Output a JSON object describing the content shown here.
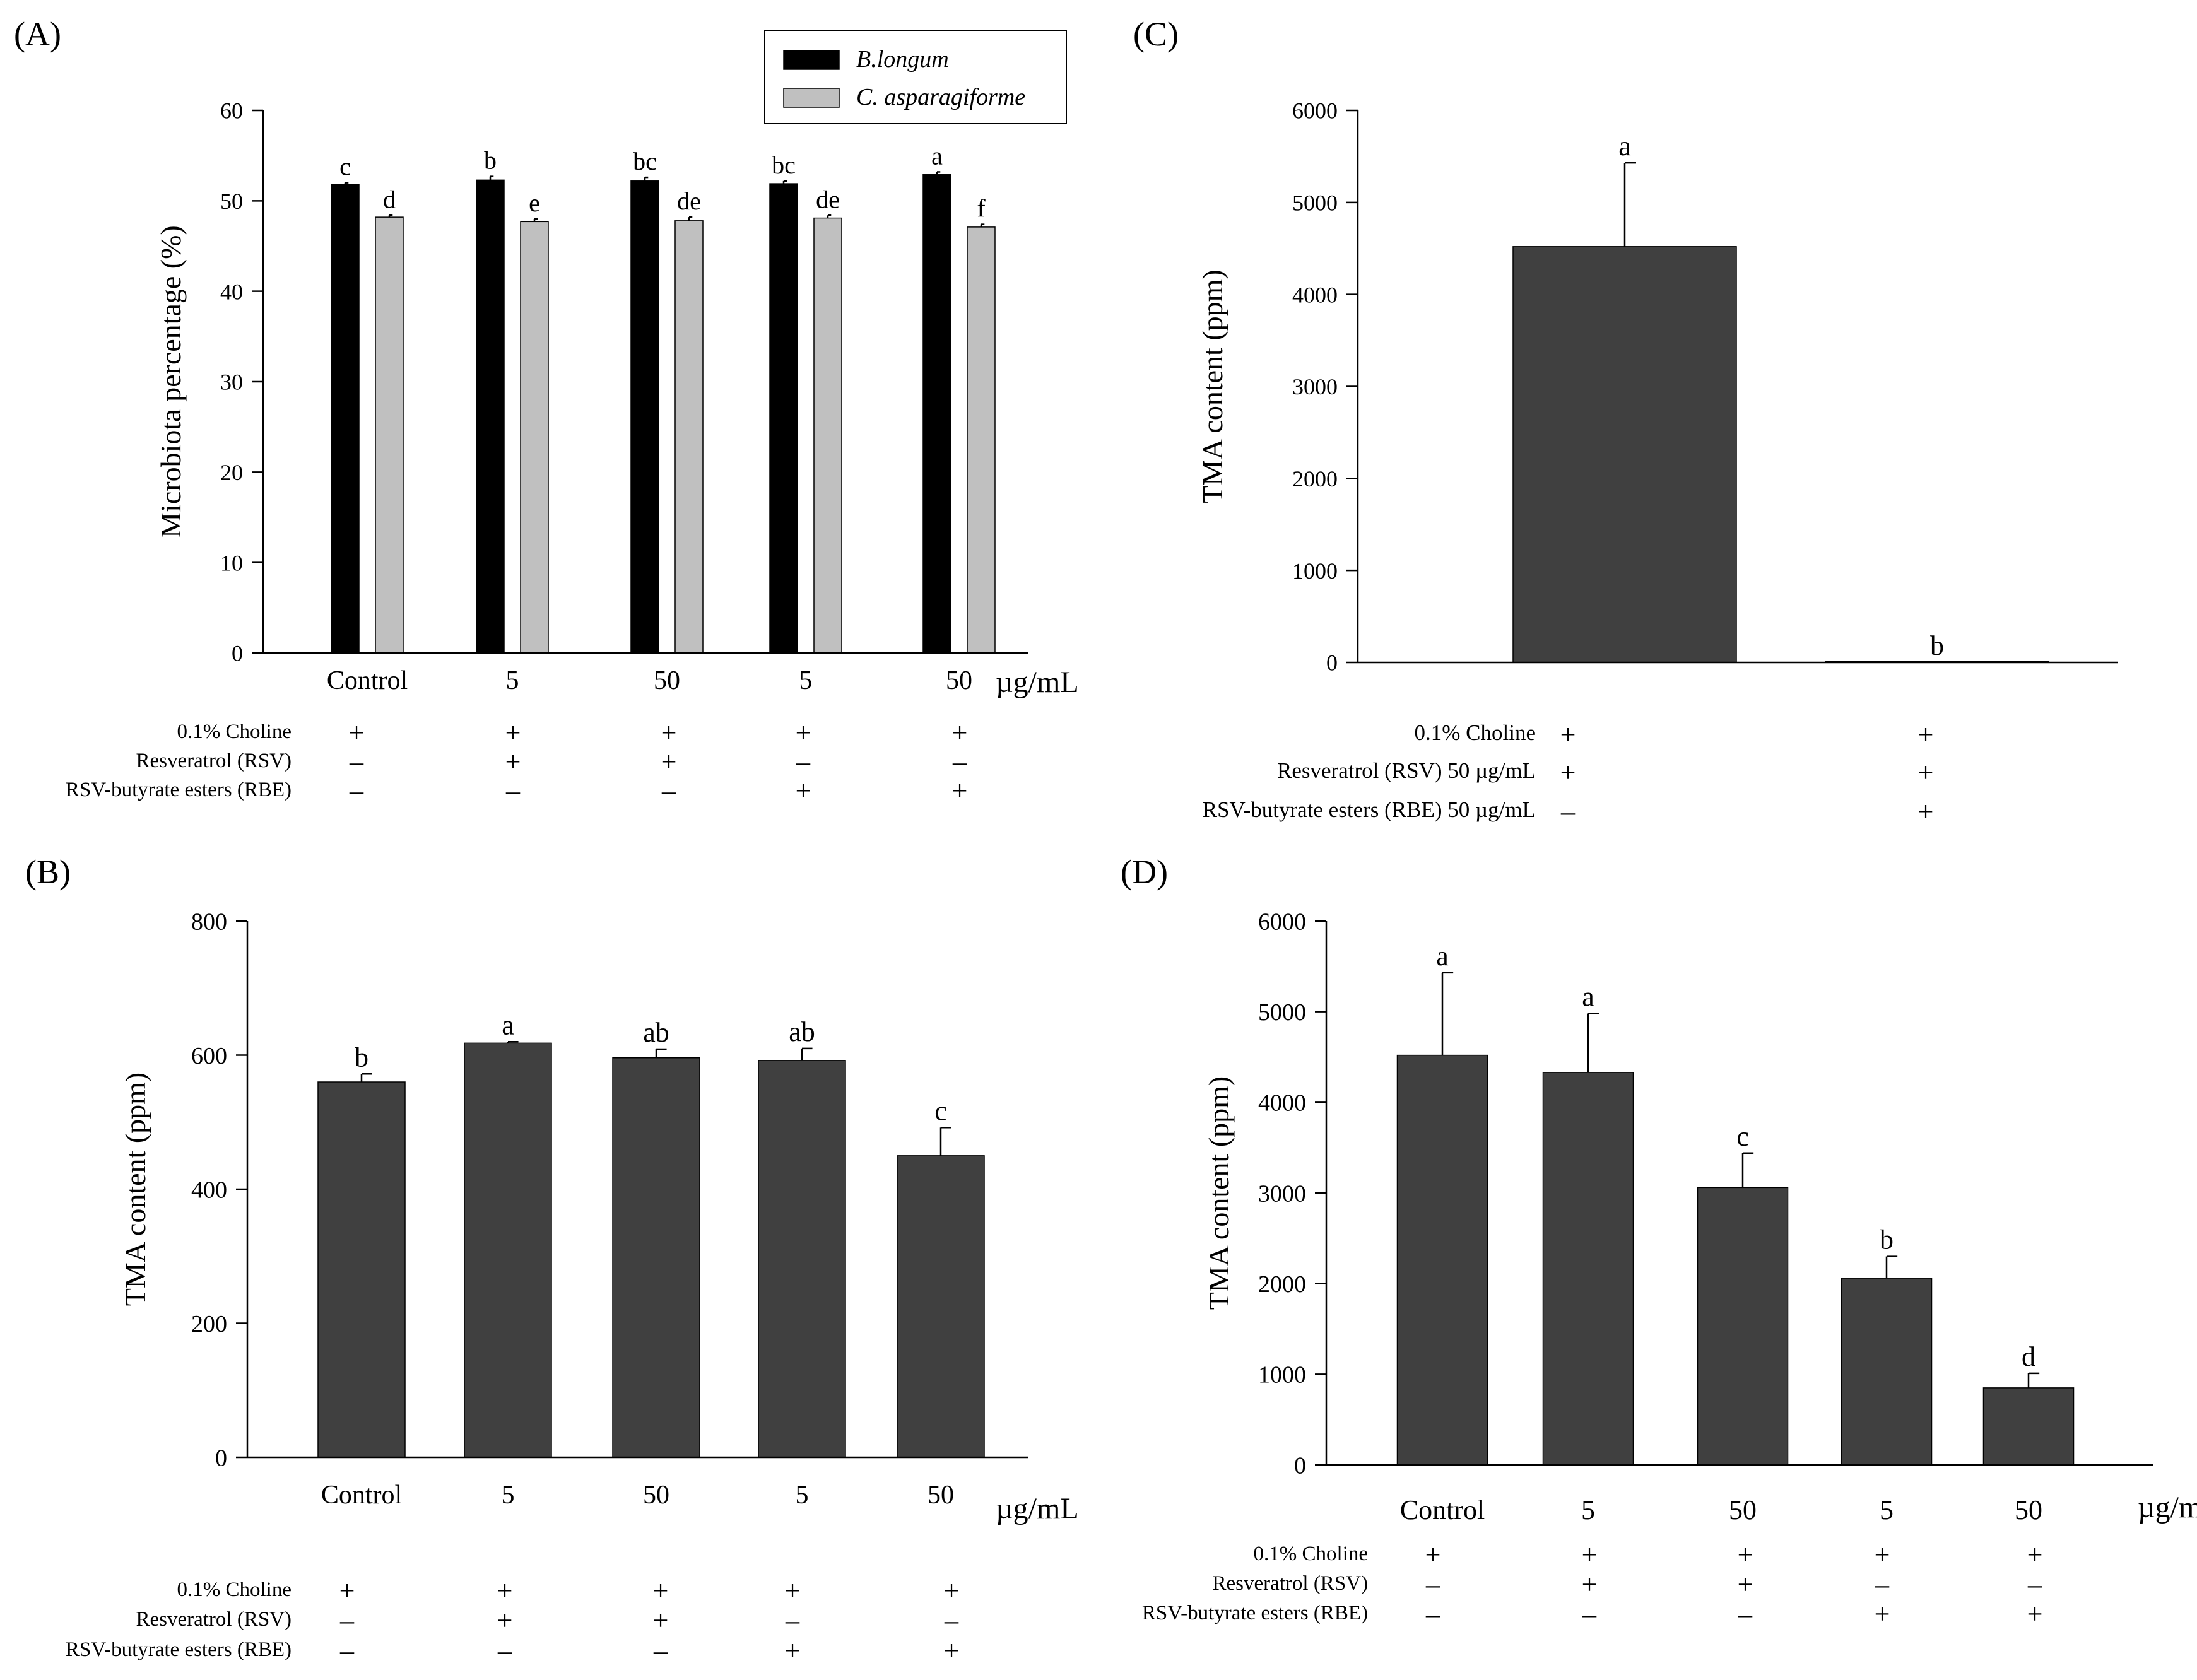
{
  "colors": {
    "black_bar": "#000000",
    "gray_bar": "#c0c0c0",
    "dark_bar": "#404040",
    "axis": "#000000"
  },
  "chart_data": [
    {
      "id": "A",
      "panel_label": "(A)",
      "type": "bar",
      "ylabel": "Microbiota percentage (%)",
      "xlabel": "",
      "ylim": [
        0,
        60
      ],
      "yticks": [
        0,
        10,
        20,
        30,
        40,
        50,
        60
      ],
      "categories": [
        "Control",
        "5",
        "50",
        "5",
        "50"
      ],
      "unit_label": "µg/mL",
      "legend": [
        "B.longum",
        "C. asparagiforme"
      ],
      "legend_position": "top",
      "series": [
        {
          "name": "B.longum",
          "color": "#000000",
          "values": [
            51.8,
            52.3,
            52.2,
            51.9,
            52.9
          ],
          "errors": [
            0.2,
            0.4,
            0.4,
            0.3,
            0.3
          ],
          "letters": [
            "c",
            "b",
            "bc",
            "bc",
            "a"
          ]
        },
        {
          "name": "C. asparagiforme",
          "color": "#c0c0c0",
          "values": [
            48.2,
            47.7,
            47.8,
            48.1,
            47.1
          ],
          "errors": [
            0.2,
            0.3,
            0.4,
            0.3,
            0.3
          ],
          "letters": [
            "d",
            "e",
            "de",
            "de",
            "f"
          ]
        }
      ],
      "treatment_rows": [
        {
          "label": "0.1% Choline",
          "signs": [
            "+",
            "+",
            "+",
            "+",
            "+"
          ]
        },
        {
          "label": "Resveratrol (RSV)",
          "signs": [
            "–",
            "+",
            "+",
            "–",
            "–"
          ]
        },
        {
          "label": "RSV-butyrate esters (RBE)",
          "signs": [
            "–",
            "–",
            "–",
            "+",
            "+"
          ]
        }
      ]
    },
    {
      "id": "B",
      "panel_label": "(B)",
      "type": "bar",
      "ylabel": "TMA content (ppm)",
      "xlabel": "",
      "ylim": [
        0,
        800
      ],
      "yticks": [
        0,
        200,
        400,
        600,
        800
      ],
      "categories": [
        "Control",
        "5",
        "50",
        "5",
        "50"
      ],
      "unit_label": "µg/mL",
      "series": [
        {
          "name": "TMA",
          "color": "#404040",
          "values": [
            560,
            618,
            596,
            592,
            450
          ],
          "errors": [
            12,
            2,
            13,
            18,
            42
          ],
          "letters": [
            "b",
            "a",
            "ab",
            "ab",
            "c"
          ]
        }
      ],
      "treatment_rows": [
        {
          "label": "0.1% Choline",
          "signs": [
            "+",
            "+",
            "+",
            "+",
            "+"
          ]
        },
        {
          "label": "Resveratrol (RSV)",
          "signs": [
            "–",
            "+",
            "+",
            "–",
            "–"
          ]
        },
        {
          "label": "RSV-butyrate esters (RBE)",
          "signs": [
            "–",
            "–",
            "–",
            "+",
            "+"
          ]
        }
      ]
    },
    {
      "id": "C",
      "panel_label": "(C)",
      "type": "bar",
      "ylabel": "TMA content (ppm)",
      "xlabel": "",
      "ylim": [
        0,
        6000
      ],
      "yticks": [
        0,
        1000,
        2000,
        3000,
        4000,
        5000,
        6000
      ],
      "categories": [
        "",
        ""
      ],
      "unit_label": "",
      "series": [
        {
          "name": "TMA",
          "color": "#404040",
          "values": [
            4520,
            0
          ],
          "errors": [
            910,
            0
          ],
          "letters": [
            "a",
            "b"
          ]
        }
      ],
      "treatment_rows": [
        {
          "label": "0.1% Choline",
          "signs": [
            "+",
            "+"
          ]
        },
        {
          "label": "Resveratrol (RSV) 50 µg/mL",
          "signs": [
            "+",
            "+"
          ]
        },
        {
          "label": "RSV-butyrate esters (RBE) 50 µg/mL",
          "signs": [
            "–",
            "+"
          ]
        }
      ]
    },
    {
      "id": "D",
      "panel_label": "(D)",
      "type": "bar",
      "ylabel": "TMA content (ppm)",
      "xlabel": "",
      "ylim": [
        0,
        6000
      ],
      "yticks": [
        0,
        1000,
        2000,
        3000,
        4000,
        5000,
        6000
      ],
      "categories": [
        "Control",
        "5",
        "50",
        "5",
        "50"
      ],
      "unit_label": "µg/mL",
      "series": [
        {
          "name": "TMA",
          "color": "#404040",
          "values": [
            4520,
            4330,
            3060,
            2060,
            850
          ],
          "errors": [
            910,
            650,
            380,
            240,
            160
          ],
          "letters": [
            "a",
            "a",
            "c",
            "b",
            "d"
          ]
        }
      ],
      "treatment_rows": [
        {
          "label": "0.1% Choline",
          "signs": [
            "+",
            "+",
            "+",
            "+",
            "+"
          ]
        },
        {
          "label": "Resveratrol (RSV)",
          "signs": [
            "–",
            "+",
            "+",
            "–",
            "–"
          ]
        },
        {
          "label": "RSV-butyrate esters (RBE)",
          "signs": [
            "–",
            "–",
            "–",
            "+",
            "+"
          ]
        }
      ]
    }
  ]
}
